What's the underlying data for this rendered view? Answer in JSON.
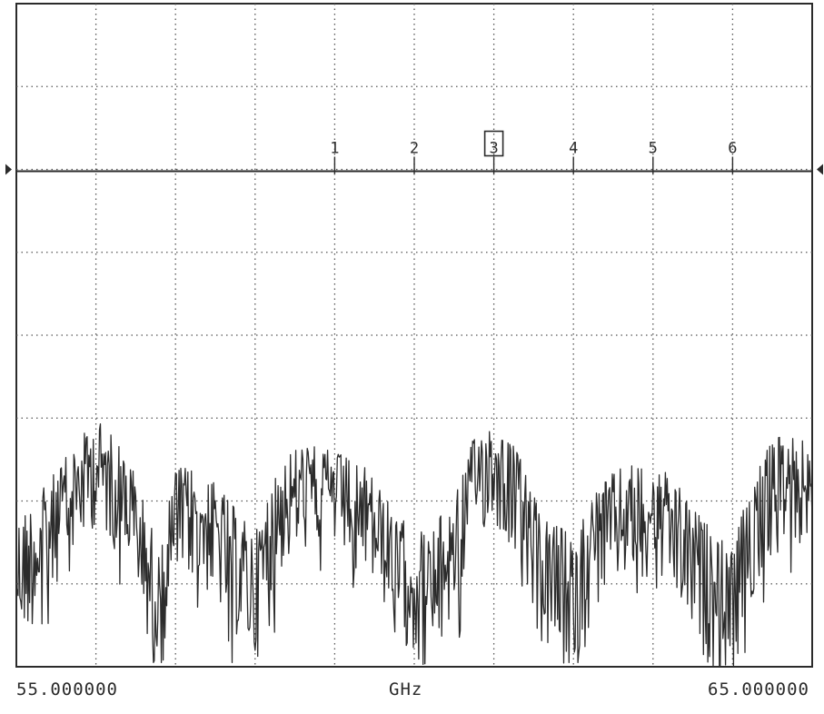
{
  "chart_data": {
    "type": "line",
    "x_start_label": "55.000000",
    "x_unit": "GHz",
    "x_stop_label": "65.000000",
    "xlim": [
      55.0,
      65.0
    ],
    "grid": true,
    "reference_trace_level_div": 2,
    "markers": [
      {
        "label": "1",
        "freq": 59.0,
        "active": false
      },
      {
        "label": "2",
        "freq": 60.0,
        "active": false
      },
      {
        "label": "3",
        "freq": 61.0,
        "active": true
      },
      {
        "label": "4",
        "freq": 62.0,
        "active": false
      },
      {
        "label": "5",
        "freq": 63.0,
        "active": false
      },
      {
        "label": "6",
        "freq": 64.0,
        "active": false
      }
    ],
    "envelope": {
      "x": [
        55.0,
        55.3,
        55.6,
        56.0,
        56.4,
        56.8,
        57.0,
        57.3,
        57.6,
        58.0,
        58.3,
        58.6,
        59.0,
        59.4,
        59.8,
        60.2,
        60.5,
        60.8,
        61.0,
        61.3,
        61.6,
        62.0,
        62.3,
        62.6,
        63.0,
        63.3,
        63.6,
        64.0,
        64.3,
        64.6,
        65.0
      ],
      "top": [
        6.2,
        5.9,
        5.5,
        5.0,
        5.4,
        6.6,
        5.6,
        5.6,
        5.9,
        6.4,
        5.5,
        5.3,
        5.4,
        5.6,
        6.2,
        6.4,
        5.9,
        5.1,
        5.0,
        5.4,
        6.2,
        6.4,
        5.8,
        5.6,
        5.5,
        5.8,
        6.2,
        6.6,
        5.5,
        5.2,
        5.3
      ],
      "bottom": [
        7.8,
        7.4,
        6.8,
        6.3,
        6.8,
        8.2,
        7.0,
        7.0,
        7.4,
        8.0,
        6.9,
        6.6,
        6.6,
        6.9,
        7.6,
        8.2,
        7.4,
        6.4,
        6.3,
        6.7,
        7.8,
        8.2,
        7.3,
        7.0,
        6.9,
        7.3,
        7.9,
        8.2,
        7.0,
        6.6,
        6.5
      ]
    }
  }
}
